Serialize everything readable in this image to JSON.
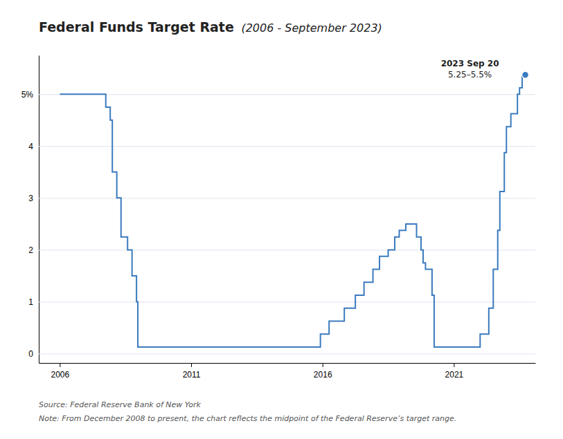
{
  "chart_data": {
    "type": "line",
    "title": "Federal Funds Target Rate ",
    "subtitle": "(2006 - September 2023)",
    "annotations": [
      "2023 Sep 20",
      "5.25–5.5%"
    ],
    "source": "Source: Federal Reserve Bank of New York",
    "note": "Note: From December 2008 to present, the chart reflects the midpoint of the Federal Reserve’s target range.",
    "color": "#3a7abf",
    "grid": true,
    "xlim": [
      2005.2,
      2024.1
    ],
    "xticks": [
      2006,
      2011,
      2016,
      2021
    ],
    "ylim": [
      -0.18,
      5.75
    ],
    "yticks": [
      0,
      1,
      2,
      3,
      4,
      {
        "value": 5,
        "label": "5%"
      }
    ],
    "x": [
      2006.0,
      2007.75,
      2007.75,
      2007.92,
      2007.92,
      2008.0,
      2008.0,
      2008.17,
      2008.17,
      2008.33,
      2008.33,
      2008.58,
      2008.58,
      2008.75,
      2008.75,
      2008.92,
      2008.92,
      2008.97,
      2008.97,
      2015.92,
      2015.92,
      2016.25,
      2016.25,
      2016.83,
      2016.83,
      2017.25,
      2017.25,
      2017.58,
      2017.58,
      2017.92,
      2017.92,
      2018.17,
      2018.17,
      2018.5,
      2018.5,
      2018.75,
      2018.75,
      2018.92,
      2018.92,
      2019.17,
      2019.17,
      2019.58,
      2019.58,
      2019.75,
      2019.75,
      2019.83,
      2019.83,
      2019.92,
      2019.92,
      2020.17,
      2020.17,
      2020.25,
      2020.25,
      2022.0,
      2022.0,
      2022.33,
      2022.33,
      2022.5,
      2022.5,
      2022.67,
      2022.67,
      2022.75,
      2022.75,
      2022.92,
      2022.92,
      2023.0,
      2023.0,
      2023.17,
      2023.17,
      2023.42,
      2023.42,
      2023.5,
      2023.5,
      2023.6,
      2023.6,
      2023.72
    ],
    "values": [
      5.0,
      5.0,
      4.75,
      4.75,
      4.5,
      4.5,
      3.5,
      3.5,
      3.0,
      3.0,
      2.25,
      2.25,
      2.0,
      2.0,
      1.5,
      1.5,
      1.0,
      1.0,
      0.125,
      0.125,
      0.375,
      0.375,
      0.625,
      0.625,
      0.875,
      0.875,
      1.125,
      1.125,
      1.375,
      1.375,
      1.625,
      1.625,
      1.875,
      1.875,
      2.0,
      2.0,
      2.25,
      2.25,
      2.375,
      2.375,
      2.5,
      2.5,
      2.25,
      2.25,
      2.0,
      2.0,
      1.75,
      1.75,
      1.625,
      1.625,
      1.125,
      1.125,
      0.125,
      0.125,
      0.375,
      0.375,
      0.875,
      0.875,
      1.625,
      1.625,
      2.375,
      2.375,
      3.125,
      3.125,
      3.875,
      3.875,
      4.375,
      4.375,
      4.625,
      4.625,
      5.0,
      5.0,
      5.125,
      5.125,
      5.375,
      5.375
    ]
  }
}
